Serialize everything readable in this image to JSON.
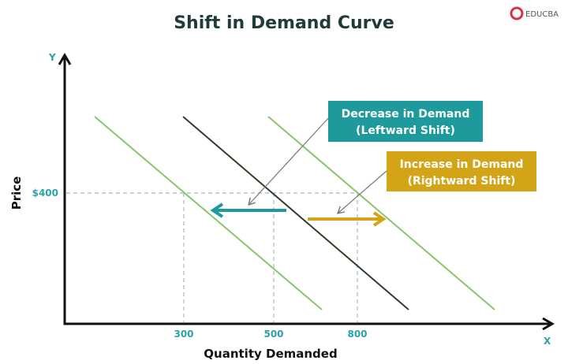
{
  "title": "Shift in Demand Curve",
  "logo": {
    "text": "EDUCBA",
    "color": "#d6304a"
  },
  "axes": {
    "y_letter": "Y",
    "x_letter": "X",
    "y_label": "Price",
    "x_label": "Quantity Demanded"
  },
  "ticks": {
    "price": "$400",
    "quantities": [
      "300",
      "500",
      "800"
    ]
  },
  "callouts": {
    "decrease": {
      "line1": "Decrease in Demand",
      "line2": "(Leftward Shift)",
      "color": "#1e9a9c"
    },
    "increase": {
      "line1": "Increase in Demand",
      "line2": "(Rightward Shift)",
      "color": "#d4a418"
    }
  },
  "colors": {
    "original_curve": "#2f3f2a",
    "shifted_curves": "#8cc46a",
    "axis_text": "#2aa3a8",
    "guide": "#9fb8c8"
  }
}
